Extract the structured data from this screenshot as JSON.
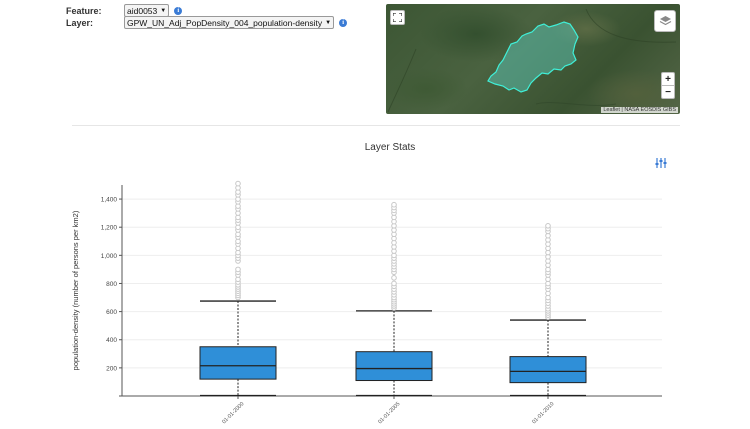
{
  "controls": {
    "feature_label": "Feature:",
    "feature_value": "aid0053",
    "layer_label": "Layer:",
    "layer_value": "GPW_UN_Adj_PopDensity_004_population-density"
  },
  "map": {
    "fullscreen_icon": "fullscreen-icon",
    "layers_icon": "layers-icon",
    "zoom_in_label": "+",
    "zoom_out_label": "−",
    "attribution": "Leaflet | NASA EOSDIS GIBS",
    "polygon_fill": "#5fd3c4",
    "polygon_stroke": "#3ff0d8"
  },
  "colors": {
    "box_fill": "#2f8fd8",
    "outlier": "#c8c8c8",
    "accent": "#3a7bd5"
  },
  "chart_data": {
    "type": "boxplot",
    "title": "Layer Stats",
    "ylabel": "population-density (number of persons per km2)",
    "ylim": [
      0,
      1500
    ],
    "yticks": [
      200,
      400,
      600,
      800,
      1000,
      1200,
      1400
    ],
    "ytick_labels": [
      "200",
      "400",
      "600",
      "800",
      "1,000",
      "1,200",
      "1,400"
    ],
    "grid": true,
    "categories": [
      "01-01-2000",
      "01-01-2005",
      "01-01-2010"
    ],
    "boxes": [
      {
        "min": 0,
        "q1": 120,
        "median": 215,
        "q3": 350,
        "max": 675,
        "outliers": [
          700,
          715,
          730,
          745,
          760,
          775,
          790,
          810,
          830,
          860,
          880,
          900,
          960,
          980,
          1000,
          1020,
          1050,
          1080,
          1100,
          1130,
          1150,
          1180,
          1200,
          1230,
          1250,
          1270,
          1300,
          1330,
          1350,
          1380,
          1400,
          1430,
          1450,
          1480,
          1510
        ]
      },
      {
        "min": 0,
        "q1": 110,
        "median": 195,
        "q3": 315,
        "max": 605,
        "outliers": [
          625,
          640,
          655,
          670,
          685,
          700,
          720,
          740,
          760,
          780,
          800,
          840,
          880,
          900,
          920,
          940,
          960,
          980,
          1000,
          1030,
          1060,
          1090,
          1120,
          1150,
          1180,
          1210,
          1240,
          1270,
          1300,
          1320,
          1340,
          1360
        ]
      },
      {
        "min": 0,
        "q1": 95,
        "median": 175,
        "q3": 280,
        "max": 540,
        "outliers": [
          560,
          575,
          590,
          605,
          620,
          640,
          660,
          680,
          700,
          730,
          760,
          780,
          800,
          830,
          860,
          880,
          900,
          930,
          960,
          990,
          1020,
          1050,
          1080,
          1110,
          1140,
          1170,
          1190,
          1210
        ]
      }
    ]
  }
}
